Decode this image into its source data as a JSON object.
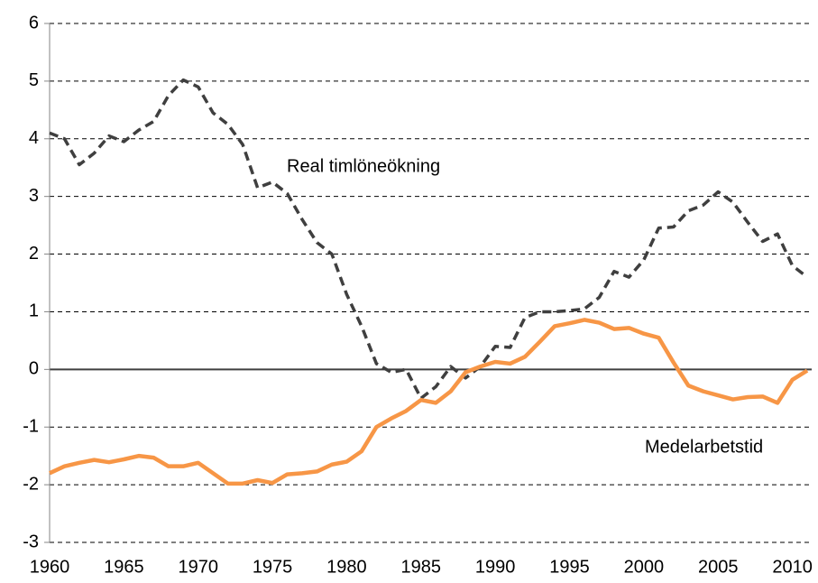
{
  "chart_data": {
    "type": "line",
    "x": [
      1960,
      1961,
      1962,
      1963,
      1964,
      1965,
      1966,
      1967,
      1968,
      1969,
      1970,
      1971,
      1972,
      1973,
      1974,
      1975,
      1976,
      1977,
      1978,
      1979,
      1980,
      1981,
      1982,
      1983,
      1984,
      1985,
      1986,
      1987,
      1988,
      1989,
      1990,
      1991,
      1992,
      1993,
      1994,
      1995,
      1996,
      1997,
      1998,
      1999,
      2000,
      2001,
      2002,
      2003,
      2004,
      2005,
      2006,
      2007,
      2008,
      2009,
      2010,
      2011
    ],
    "series": [
      {
        "name": "Real timlöneökning",
        "color": "#3f3f3f",
        "dash": true,
        "values": [
          4.1,
          4.0,
          3.55,
          3.75,
          4.05,
          3.95,
          4.15,
          4.3,
          4.75,
          5.02,
          4.9,
          4.45,
          4.25,
          3.9,
          3.15,
          3.25,
          3.05,
          2.6,
          2.2,
          2.0,
          1.3,
          0.75,
          0.1,
          -0.05,
          0.0,
          -0.5,
          -0.3,
          0.05,
          -0.15,
          0.05,
          0.4,
          0.38,
          0.9,
          1.0,
          1.0,
          1.02,
          1.05,
          1.25,
          1.7,
          1.6,
          1.9,
          2.45,
          2.47,
          2.75,
          2.85,
          3.08,
          2.9,
          2.55,
          2.22,
          2.35,
          1.8,
          1.6
        ]
      },
      {
        "name": "Medelarbetstid",
        "color": "#f79646",
        "dash": false,
        "values": [
          -1.8,
          -1.68,
          -1.62,
          -1.57,
          -1.61,
          -1.56,
          -1.5,
          -1.53,
          -1.68,
          -1.68,
          -1.62,
          -1.8,
          -1.98,
          -1.98,
          -1.92,
          -1.97,
          -1.82,
          -1.8,
          -1.77,
          -1.65,
          -1.6,
          -1.42,
          -1.0,
          -0.85,
          -0.72,
          -0.53,
          -0.58,
          -0.38,
          -0.05,
          0.05,
          0.13,
          0.1,
          0.22,
          0.48,
          0.75,
          0.8,
          0.86,
          0.81,
          0.7,
          0.72,
          0.62,
          0.55,
          0.12,
          -0.28,
          -0.38,
          -0.45,
          -0.52,
          -0.48,
          -0.47,
          -0.58,
          -0.18,
          -0.02
        ]
      }
    ],
    "xlim": [
      1960,
      2011.3
    ],
    "xticks": [
      1960,
      1965,
      1970,
      1975,
      1980,
      1985,
      1990,
      1995,
      2000,
      2005,
      2010
    ],
    "ylim": [
      -3,
      6
    ],
    "yticks": [
      -3,
      -2,
      -1,
      0,
      1,
      2,
      3,
      4,
      5,
      6
    ],
    "grid": true
  }
}
